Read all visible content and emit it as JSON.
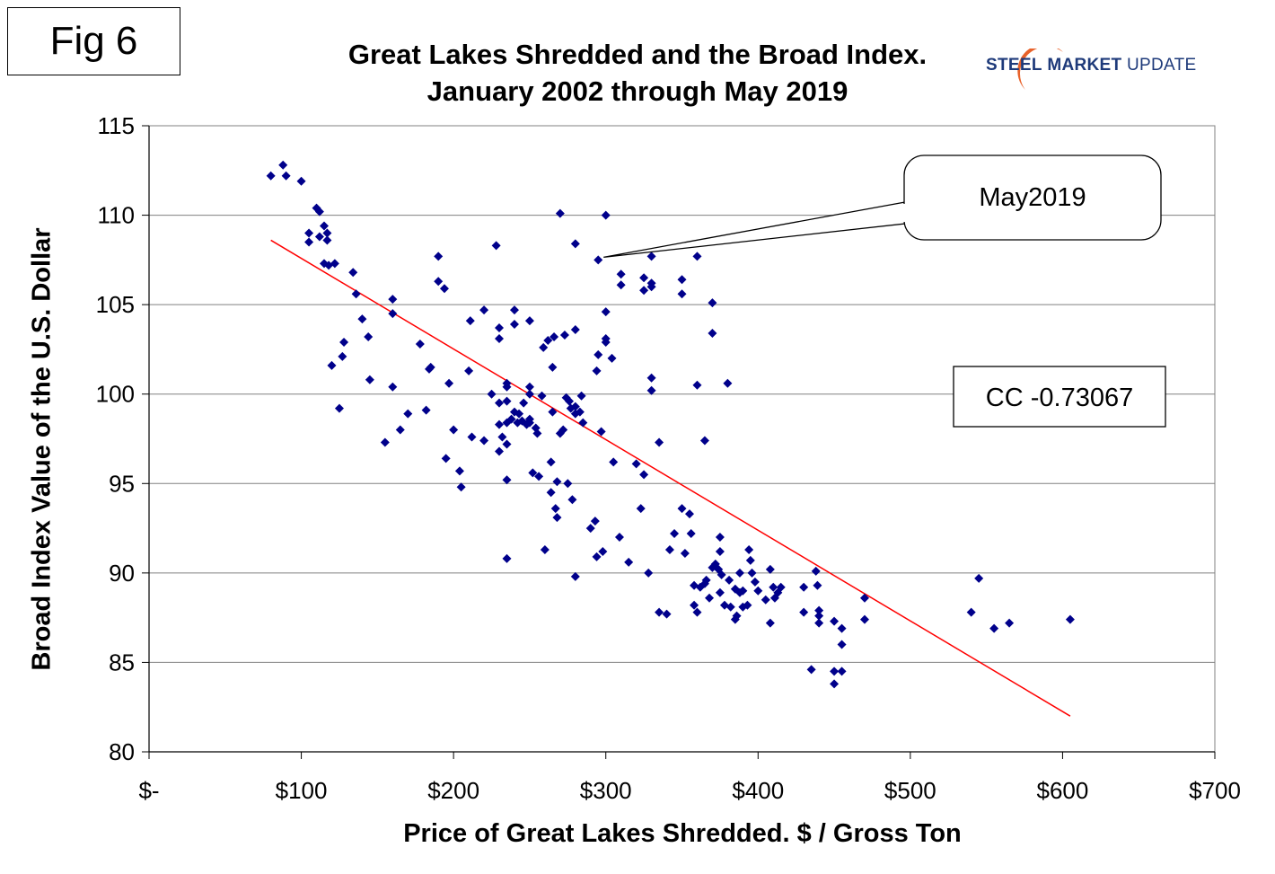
{
  "figure": {
    "label": "Fig 6"
  },
  "brand": {
    "word1": "STEEL",
    "word2": "MARKET",
    "word3": "UPDATE",
    "colors": {
      "text": "#1e3a7a",
      "swoosh": "#e8622a"
    }
  },
  "chart_data": {
    "type": "scatter",
    "title": "Great Lakes Shredded and the Broad Index.",
    "subtitle": "January 2002 through May 2019",
    "xlabel": "Price of Great Lakes Shredded. $ / Gross Ton",
    "ylabel": "Broad Index Value of the U.S. Dollar",
    "xlim": [
      0,
      700
    ],
    "ylim": [
      80,
      115
    ],
    "x_ticks": [
      0,
      100,
      200,
      300,
      400,
      500,
      600,
      700
    ],
    "x_tick_labels": [
      "$-",
      "$100",
      "$200",
      "$300",
      "$400",
      "$500",
      "$600",
      "$700"
    ],
    "y_ticks": [
      80,
      85,
      90,
      95,
      100,
      105,
      110,
      115
    ],
    "y_tick_labels": [
      "80",
      "85",
      "90",
      "95",
      "100",
      "105",
      "110",
      "115"
    ],
    "grid": "horizontal",
    "marker_color": "#00008b",
    "trendline": {
      "color": "#ff0000",
      "x": [
        80,
        605
      ],
      "y": [
        108.6,
        82.0
      ]
    },
    "annotations": {
      "callout": {
        "text": "May2019",
        "point": [
          295,
          107.5
        ]
      },
      "correlation": {
        "text": "CC -0.73067"
      }
    },
    "points": [
      [
        80,
        112.2
      ],
      [
        88,
        112.8
      ],
      [
        90,
        112.2
      ],
      [
        100,
        111.9
      ],
      [
        105,
        109.0
      ],
      [
        105,
        108.5
      ],
      [
        110,
        110.4
      ],
      [
        112,
        110.2
      ],
      [
        112,
        108.8
      ],
      [
        115,
        109.4
      ],
      [
        115,
        107.3
      ],
      [
        117,
        109.0
      ],
      [
        117,
        108.6
      ],
      [
        118,
        107.2
      ],
      [
        122,
        107.3
      ],
      [
        120,
        101.6
      ],
      [
        125,
        99.2
      ],
      [
        127,
        102.1
      ],
      [
        128,
        102.9
      ],
      [
        134,
        106.8
      ],
      [
        136,
        105.6
      ],
      [
        140,
        104.2
      ],
      [
        144,
        103.2
      ],
      [
        145,
        100.8
      ],
      [
        155,
        97.3
      ],
      [
        160,
        105.3
      ],
      [
        160,
        104.5
      ],
      [
        160,
        100.4
      ],
      [
        165,
        98.0
      ],
      [
        170,
        98.9
      ],
      [
        178,
        102.8
      ],
      [
        182,
        99.1
      ],
      [
        184,
        101.4
      ],
      [
        185,
        101.5
      ],
      [
        190,
        107.7
      ],
      [
        190,
        106.3
      ],
      [
        194,
        105.9
      ],
      [
        195,
        96.4
      ],
      [
        197,
        100.6
      ],
      [
        200,
        98.0
      ],
      [
        204,
        95.7
      ],
      [
        205,
        94.8
      ],
      [
        210,
        101.3
      ],
      [
        211,
        104.1
      ],
      [
        212,
        97.6
      ],
      [
        220,
        104.7
      ],
      [
        220,
        97.4
      ],
      [
        225,
        100.0
      ],
      [
        228,
        108.3
      ],
      [
        230,
        103.7
      ],
      [
        230,
        103.1
      ],
      [
        230,
        99.5
      ],
      [
        230,
        98.3
      ],
      [
        230,
        96.8
      ],
      [
        232,
        97.6
      ],
      [
        235,
        100.6
      ],
      [
        235,
        100.4
      ],
      [
        235,
        99.6
      ],
      [
        235,
        98.4
      ],
      [
        235,
        97.2
      ],
      [
        235,
        95.2
      ],
      [
        235,
        90.8
      ],
      [
        238,
        98.6
      ],
      [
        240,
        104.7
      ],
      [
        240,
        103.9
      ],
      [
        240,
        99.0
      ],
      [
        242,
        98.4
      ],
      [
        243,
        98.9
      ],
      [
        245,
        98.5
      ],
      [
        246,
        99.5
      ],
      [
        248,
        98.3
      ],
      [
        250,
        104.1
      ],
      [
        250,
        100.4
      ],
      [
        250,
        100.0
      ],
      [
        250,
        98.6
      ],
      [
        250,
        98.4
      ],
      [
        252,
        95.6
      ],
      [
        254,
        98.1
      ],
      [
        255,
        97.8
      ],
      [
        256,
        95.4
      ],
      [
        258,
        99.9
      ],
      [
        259,
        102.6
      ],
      [
        260,
        91.3
      ],
      [
        262,
        103.0
      ],
      [
        264,
        94.5
      ],
      [
        264,
        96.2
      ],
      [
        265,
        101.5
      ],
      [
        265,
        99.0
      ],
      [
        266,
        103.2
      ],
      [
        267,
        93.6
      ],
      [
        268,
        95.1
      ],
      [
        268,
        93.1
      ],
      [
        270,
        110.1
      ],
      [
        270,
        97.8
      ],
      [
        272,
        98.0
      ],
      [
        273,
        103.3
      ],
      [
        274,
        99.8
      ],
      [
        275,
        95.0
      ],
      [
        276,
        99.6
      ],
      [
        277,
        99.2
      ],
      [
        278,
        94.1
      ],
      [
        280,
        108.4
      ],
      [
        280,
        103.6
      ],
      [
        280,
        99.3
      ],
      [
        280,
        98.9
      ],
      [
        280,
        89.8
      ],
      [
        283,
        99.0
      ],
      [
        284,
        99.9
      ],
      [
        285,
        98.4
      ],
      [
        290,
        92.5
      ],
      [
        293,
        92.9
      ],
      [
        294,
        101.3
      ],
      [
        294,
        90.9
      ],
      [
        295,
        107.5
      ],
      [
        295,
        102.2
      ],
      [
        297,
        97.9
      ],
      [
        298,
        91.2
      ],
      [
        300,
        110.0
      ],
      [
        300,
        104.6
      ],
      [
        300,
        103.1
      ],
      [
        300,
        102.9
      ],
      [
        304,
        102.0
      ],
      [
        305,
        96.2
      ],
      [
        309,
        92.0
      ],
      [
        310,
        106.7
      ],
      [
        310,
        106.1
      ],
      [
        315,
        90.6
      ],
      [
        320,
        96.1
      ],
      [
        323,
        93.6
      ],
      [
        325,
        106.5
      ],
      [
        325,
        105.8
      ],
      [
        325,
        95.5
      ],
      [
        328,
        90.0
      ],
      [
        330,
        107.7
      ],
      [
        330,
        106.2
      ],
      [
        330,
        106.0
      ],
      [
        330,
        100.9
      ],
      [
        330,
        100.2
      ],
      [
        335,
        97.3
      ],
      [
        335,
        87.8
      ],
      [
        340,
        87.7
      ],
      [
        342,
        91.3
      ],
      [
        345,
        92.2
      ],
      [
        350,
        106.4
      ],
      [
        350,
        105.6
      ],
      [
        350,
        93.6
      ],
      [
        352,
        91.1
      ],
      [
        355,
        93.3
      ],
      [
        356,
        92.2
      ],
      [
        358,
        89.3
      ],
      [
        358,
        88.2
      ],
      [
        360,
        107.7
      ],
      [
        360,
        100.5
      ],
      [
        360,
        87.8
      ],
      [
        362,
        89.2
      ],
      [
        365,
        97.4
      ],
      [
        365,
        89.4
      ],
      [
        366,
        89.6
      ],
      [
        368,
        88.6
      ],
      [
        370,
        105.1
      ],
      [
        370,
        103.4
      ],
      [
        370,
        90.3
      ],
      [
        372,
        90.5
      ],
      [
        374,
        90.2
      ],
      [
        375,
        92.0
      ],
      [
        375,
        91.2
      ],
      [
        375,
        88.9
      ],
      [
        376,
        89.9
      ],
      [
        378,
        88.2
      ],
      [
        380,
        100.6
      ],
      [
        381,
        89.6
      ],
      [
        382,
        88.1
      ],
      [
        385,
        89.1
      ],
      [
        385,
        87.4
      ],
      [
        386,
        87.6
      ],
      [
        388,
        90.0
      ],
      [
        388,
        88.9
      ],
      [
        390,
        89.0
      ],
      [
        390,
        88.1
      ],
      [
        393,
        88.2
      ],
      [
        394,
        91.3
      ],
      [
        395,
        90.7
      ],
      [
        396,
        90.0
      ],
      [
        398,
        89.5
      ],
      [
        400,
        89.0
      ],
      [
        405,
        88.5
      ],
      [
        408,
        90.2
      ],
      [
        408,
        87.2
      ],
      [
        410,
        89.2
      ],
      [
        411,
        88.6
      ],
      [
        413,
        88.9
      ],
      [
        415,
        89.2
      ],
      [
        430,
        89.2
      ],
      [
        430,
        87.8
      ],
      [
        435,
        84.6
      ],
      [
        438,
        90.1
      ],
      [
        439,
        89.3
      ],
      [
        440,
        87.9
      ],
      [
        440,
        87.6
      ],
      [
        440,
        87.2
      ],
      [
        450,
        87.3
      ],
      [
        450,
        84.5
      ],
      [
        450,
        83.8
      ],
      [
        455,
        86.9
      ],
      [
        455,
        86.0
      ],
      [
        455,
        84.5
      ],
      [
        470,
        88.6
      ],
      [
        470,
        87.4
      ],
      [
        540,
        87.8
      ],
      [
        545,
        89.7
      ],
      [
        555,
        86.9
      ],
      [
        565,
        87.2
      ],
      [
        605,
        87.4
      ]
    ]
  }
}
